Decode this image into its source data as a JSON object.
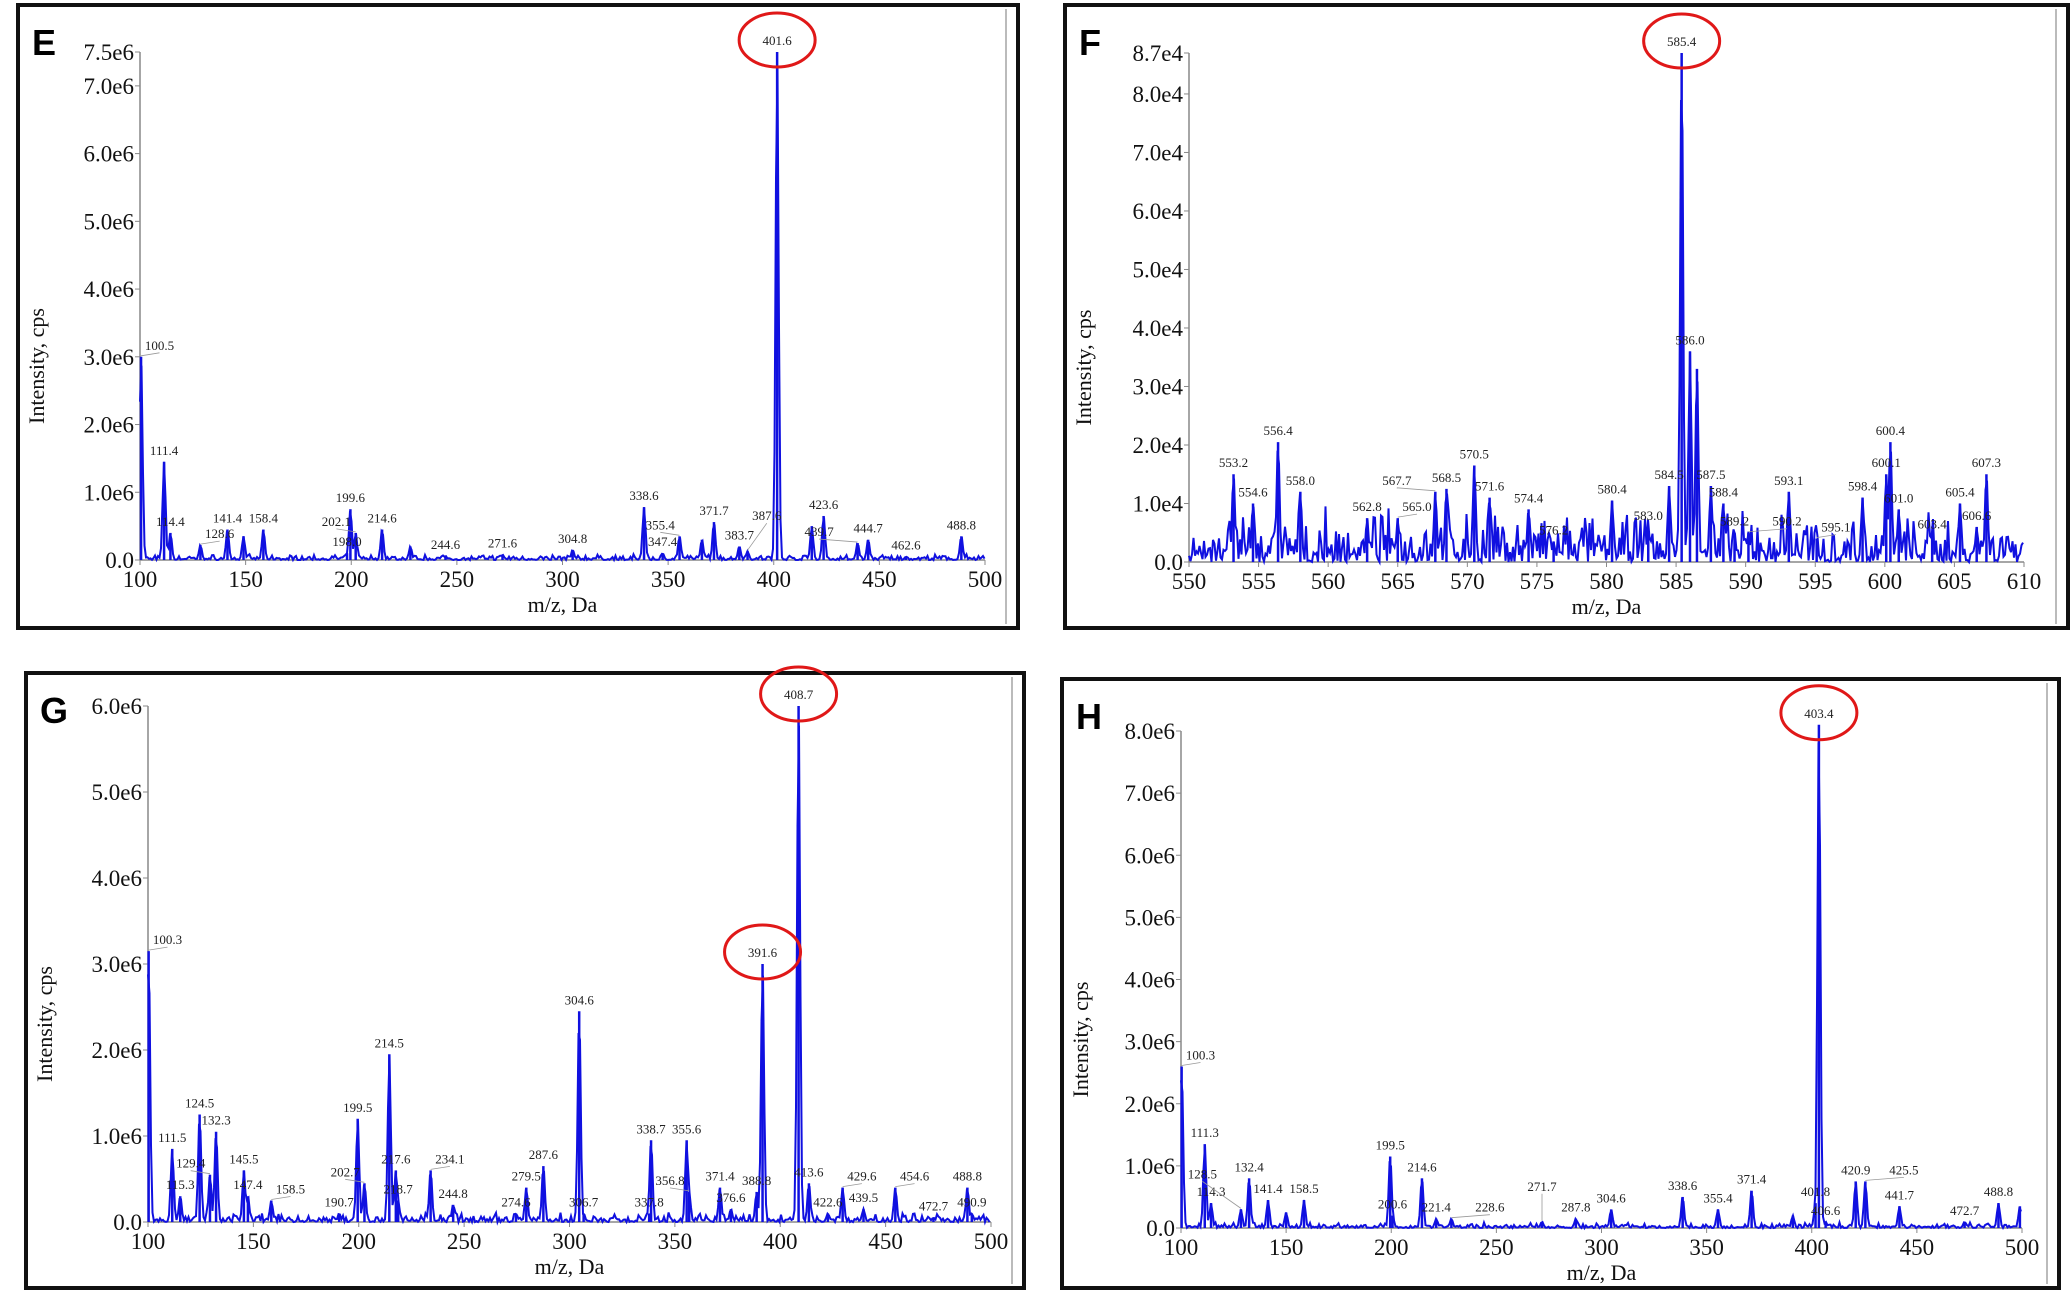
{
  "colors": {
    "spectrum": "#1010e0",
    "highlight": "#e01818",
    "axis": "#888888",
    "frame": "#111111"
  },
  "chart_data": [
    {
      "panel": "E",
      "type": "line",
      "xlabel": "m/z, Da",
      "ylabel": "Intensity, cps",
      "xlim": [
        100,
        500
      ],
      "ylim": [
        0,
        7500000
      ],
      "xticks": [
        "100",
        "150",
        "200",
        "250",
        "300",
        "350",
        "400",
        "450",
        "500"
      ],
      "yticks": [
        [
          "0.0",
          0
        ],
        [
          "1.0e6",
          1000000
        ],
        [
          "2.0e6",
          2000000
        ],
        [
          "3.0e6",
          3000000
        ],
        [
          "4.0e6",
          4000000
        ],
        [
          "5.0e6",
          5000000
        ],
        [
          "6.0e6",
          6000000
        ],
        [
          "7.0e6",
          7000000
        ],
        [
          "7.5e6",
          7500000
        ]
      ],
      "highlighted": [
        "401.6"
      ],
      "peaks": [
        {
          "mz": 100.5,
          "i": 3000000,
          "label": "100.5"
        },
        {
          "mz": 111.4,
          "i": 1450000,
          "label": "111.4"
        },
        {
          "mz": 114.4,
          "i": 400000,
          "label": "114.4"
        },
        {
          "mz": 128.6,
          "i": 220000,
          "label": "128.6"
        },
        {
          "mz": 141.4,
          "i": 450000,
          "label": "141.4"
        },
        {
          "mz": 149,
          "i": 350000,
          "label": ""
        },
        {
          "mz": 158.4,
          "i": 450000,
          "label": "158.4"
        },
        {
          "mz": 198.0,
          "i": 100000,
          "label": "198.0"
        },
        {
          "mz": 199.6,
          "i": 750000,
          "label": "199.6"
        },
        {
          "mz": 202.1,
          "i": 400000,
          "label": "202.1"
        },
        {
          "mz": 214.6,
          "i": 450000,
          "label": "214.6"
        },
        {
          "mz": 228,
          "i": 200000,
          "label": ""
        },
        {
          "mz": 244.6,
          "i": 60000,
          "label": "244.6"
        },
        {
          "mz": 271.6,
          "i": 80000,
          "label": "271.6"
        },
        {
          "mz": 304.8,
          "i": 150000,
          "label": "304.8"
        },
        {
          "mz": 338.6,
          "i": 780000,
          "label": "338.6"
        },
        {
          "mz": 347.4,
          "i": 100000,
          "label": "347.4"
        },
        {
          "mz": 355.4,
          "i": 350000,
          "label": "355.4"
        },
        {
          "mz": 366,
          "i": 300000,
          "label": ""
        },
        {
          "mz": 371.7,
          "i": 560000,
          "label": "371.7"
        },
        {
          "mz": 383.7,
          "i": 200000,
          "label": "383.7"
        },
        {
          "mz": 387.6,
          "i": 130000,
          "label": "387.6"
        },
        {
          "mz": 401.6,
          "i": 7500000,
          "label": "401.6"
        },
        {
          "mz": 418,
          "i": 500000,
          "label": ""
        },
        {
          "mz": 423.6,
          "i": 650000,
          "label": "423.6"
        },
        {
          "mz": 439.7,
          "i": 250000,
          "label": "439.7"
        },
        {
          "mz": 444.7,
          "i": 300000,
          "label": "444.7"
        },
        {
          "mz": 462.6,
          "i": 50000,
          "label": "462.6"
        },
        {
          "mz": 488.8,
          "i": 350000,
          "label": "488.8"
        }
      ]
    },
    {
      "panel": "F",
      "type": "line",
      "xlabel": "m/z, Da",
      "ylabel": "Intensity, cps",
      "xlim": [
        550,
        610
      ],
      "ylim": [
        0,
        87000
      ],
      "xticks": [
        "550",
        "555",
        "560",
        "565",
        "570",
        "575",
        "580",
        "585",
        "590",
        "595",
        "600",
        "605",
        "610"
      ],
      "yticks": [
        [
          "0.0",
          0
        ],
        [
          "1.0e4",
          10000
        ],
        [
          "2.0e4",
          20000
        ],
        [
          "3.0e4",
          30000
        ],
        [
          "4.0e4",
          40000
        ],
        [
          "5.0e4",
          50000
        ],
        [
          "6.0e4",
          60000
        ],
        [
          "7.0e4",
          70000
        ],
        [
          "8.0e4",
          80000
        ],
        [
          "8.7e4",
          87000
        ]
      ],
      "highlighted": [
        "585.4"
      ],
      "peaks": [
        {
          "mz": 553.2,
          "i": 15000,
          "label": "553.2"
        },
        {
          "mz": 554.6,
          "i": 10000,
          "label": "554.6"
        },
        {
          "mz": 556.4,
          "i": 20500,
          "label": "556.4"
        },
        {
          "mz": 558.0,
          "i": 12000,
          "label": "558.0"
        },
        {
          "mz": 562.8,
          "i": 7500,
          "label": "562.8"
        },
        {
          "mz": 565.0,
          "i": 7500,
          "label": "565.0"
        },
        {
          "mz": 567.7,
          "i": 12000,
          "label": "567.7"
        },
        {
          "mz": 568.5,
          "i": 12500,
          "label": "568.5"
        },
        {
          "mz": 570.5,
          "i": 16500,
          "label": "570.5"
        },
        {
          "mz": 571.6,
          "i": 11000,
          "label": "571.6"
        },
        {
          "mz": 574.4,
          "i": 9000,
          "label": "574.4"
        },
        {
          "mz": 576.2,
          "i": 3500,
          "label": "576.2"
        },
        {
          "mz": 580.4,
          "i": 10500,
          "label": "580.4"
        },
        {
          "mz": 583.0,
          "i": 6000,
          "label": "583.0"
        },
        {
          "mz": 584.5,
          "i": 13000,
          "label": "584.5"
        },
        {
          "mz": 585.4,
          "i": 87000,
          "label": "585.4"
        },
        {
          "mz": 586.0,
          "i": 36000,
          "label": "586.0"
        },
        {
          "mz": 586.5,
          "i": 33000,
          "label": ""
        },
        {
          "mz": 587.5,
          "i": 13000,
          "label": "587.5"
        },
        {
          "mz": 588.4,
          "i": 10000,
          "label": "588.4"
        },
        {
          "mz": 589.2,
          "i": 5000,
          "label": "589.2"
        },
        {
          "mz": 590.2,
          "i": 5000,
          "label": "590.2"
        },
        {
          "mz": 593.1,
          "i": 12000,
          "label": "593.1"
        },
        {
          "mz": 595.1,
          "i": 4000,
          "label": "595.1"
        },
        {
          "mz": 598.4,
          "i": 11000,
          "label": "598.4"
        },
        {
          "mz": 600.1,
          "i": 15000,
          "label": "600.1"
        },
        {
          "mz": 600.4,
          "i": 20500,
          "label": "600.4"
        },
        {
          "mz": 601.0,
          "i": 9000,
          "label": "601.0"
        },
        {
          "mz": 603.4,
          "i": 4500,
          "label": "603.4"
        },
        {
          "mz": 605.4,
          "i": 10000,
          "label": "605.4"
        },
        {
          "mz": 606.6,
          "i": 6000,
          "label": "606.6"
        },
        {
          "mz": 607.3,
          "i": 15000,
          "label": "607.3"
        }
      ]
    },
    {
      "panel": "G",
      "type": "line",
      "xlabel": "m/z, Da",
      "ylabel": "Intensity, cps",
      "xlim": [
        100,
        500
      ],
      "ylim": [
        0,
        6000000
      ],
      "xticks": [
        "100",
        "150",
        "200",
        "250",
        "300",
        "350",
        "400",
        "450",
        "500"
      ],
      "yticks": [
        [
          "0.0",
          0
        ],
        [
          "1.0e6",
          1000000
        ],
        [
          "2.0e6",
          2000000
        ],
        [
          "3.0e6",
          3000000
        ],
        [
          "4.0e6",
          4000000
        ],
        [
          "5.0e6",
          5000000
        ],
        [
          "6.0e6",
          6000000
        ]
      ],
      "highlighted": [
        "408.7",
        "391.6"
      ],
      "peaks": [
        {
          "mz": 100.3,
          "i": 3150000,
          "label": "100.3"
        },
        {
          "mz": 111.5,
          "i": 850000,
          "label": "111.5"
        },
        {
          "mz": 115.3,
          "i": 300000,
          "label": "115.3"
        },
        {
          "mz": 124.5,
          "i": 1250000,
          "label": "124.5"
        },
        {
          "mz": 129.4,
          "i": 550000,
          "label": "129.4"
        },
        {
          "mz": 132.3,
          "i": 1050000,
          "label": "132.3"
        },
        {
          "mz": 145.5,
          "i": 600000,
          "label": "145.5"
        },
        {
          "mz": 147.4,
          "i": 300000,
          "label": "147.4"
        },
        {
          "mz": 158.5,
          "i": 250000,
          "label": "158.5"
        },
        {
          "mz": 190.7,
          "i": 100000,
          "label": "190.7"
        },
        {
          "mz": 199.5,
          "i": 1200000,
          "label": "199.5"
        },
        {
          "mz": 202.7,
          "i": 450000,
          "label": "202.7"
        },
        {
          "mz": 214.5,
          "i": 1950000,
          "label": "214.5"
        },
        {
          "mz": 217.6,
          "i": 600000,
          "label": "217.6"
        },
        {
          "mz": 218.7,
          "i": 250000,
          "label": "218.7"
        },
        {
          "mz": 234.1,
          "i": 600000,
          "label": "234.1"
        },
        {
          "mz": 244.8,
          "i": 200000,
          "label": "244.8"
        },
        {
          "mz": 274.6,
          "i": 100000,
          "label": "274.6"
        },
        {
          "mz": 279.5,
          "i": 400000,
          "label": "279.5"
        },
        {
          "mz": 287.6,
          "i": 650000,
          "label": "287.6"
        },
        {
          "mz": 304.6,
          "i": 2450000,
          "label": "304.6"
        },
        {
          "mz": 306.7,
          "i": 100000,
          "label": "306.7"
        },
        {
          "mz": 337.8,
          "i": 100000,
          "label": "337.8"
        },
        {
          "mz": 338.7,
          "i": 950000,
          "label": "338.7"
        },
        {
          "mz": 355.6,
          "i": 950000,
          "label": "355.6"
        },
        {
          "mz": 356.8,
          "i": 350000,
          "label": "356.8"
        },
        {
          "mz": 371.4,
          "i": 400000,
          "label": "371.4"
        },
        {
          "mz": 376.6,
          "i": 150000,
          "label": "376.6"
        },
        {
          "mz": 388.8,
          "i": 350000,
          "label": "388.8"
        },
        {
          "mz": 391.6,
          "i": 3000000,
          "label": "391.6"
        },
        {
          "mz": 408.7,
          "i": 6000000,
          "label": "408.7"
        },
        {
          "mz": 413.6,
          "i": 450000,
          "label": "413.6"
        },
        {
          "mz": 422.6,
          "i": 100000,
          "label": "422.6"
        },
        {
          "mz": 429.6,
          "i": 400000,
          "label": "429.6"
        },
        {
          "mz": 439.5,
          "i": 150000,
          "label": "439.5"
        },
        {
          "mz": 454.6,
          "i": 400000,
          "label": "454.6"
        },
        {
          "mz": 472.7,
          "i": 50000,
          "label": "472.7"
        },
        {
          "mz": 488.8,
          "i": 400000,
          "label": "488.8"
        },
        {
          "mz": 490.9,
          "i": 100000,
          "label": "490.9"
        }
      ]
    },
    {
      "panel": "H",
      "type": "line",
      "xlabel": "m/z, Da",
      "ylabel": "Intensity, cps",
      "xlim": [
        100,
        500
      ],
      "ylim": [
        0,
        8000000
      ],
      "xticks": [
        "100",
        "150",
        "200",
        "250",
        "300",
        "350",
        "400",
        "450",
        "500"
      ],
      "yticks": [
        [
          "0.0",
          0
        ],
        [
          "1.0e6",
          1000000
        ],
        [
          "2.0e6",
          2000000
        ],
        [
          "3.0e6",
          3000000
        ],
        [
          "4.0e6",
          4000000
        ],
        [
          "5.0e6",
          5000000
        ],
        [
          "6.0e6",
          6000000
        ],
        [
          "7.0e6",
          7000000
        ],
        [
          "8.0e6",
          8000000
        ]
      ],
      "highlighted": [
        "403.4"
      ],
      "peaks": [
        {
          "mz": 100.3,
          "i": 2600000,
          "label": "100.3"
        },
        {
          "mz": 111.3,
          "i": 1350000,
          "label": "111.3"
        },
        {
          "mz": 114.3,
          "i": 400000,
          "label": "114.3"
        },
        {
          "mz": 128.5,
          "i": 300000,
          "label": "128.5"
        },
        {
          "mz": 132.4,
          "i": 800000,
          "label": "132.4"
        },
        {
          "mz": 141.4,
          "i": 450000,
          "label": "141.4"
        },
        {
          "mz": 150,
          "i": 250000,
          "label": ""
        },
        {
          "mz": 158.5,
          "i": 450000,
          "label": "158.5"
        },
        {
          "mz": 199.5,
          "i": 1150000,
          "label": "199.5"
        },
        {
          "mz": 200.6,
          "i": 200000,
          "label": "200.6"
        },
        {
          "mz": 214.6,
          "i": 800000,
          "label": "214.6"
        },
        {
          "mz": 221.4,
          "i": 150000,
          "label": "221.4"
        },
        {
          "mz": 228.6,
          "i": 150000,
          "label": "228.6"
        },
        {
          "mz": 271.7,
          "i": 100000,
          "label": "271.7"
        },
        {
          "mz": 287.8,
          "i": 150000,
          "label": "287.8"
        },
        {
          "mz": 304.6,
          "i": 300000,
          "label": "304.6"
        },
        {
          "mz": 338.6,
          "i": 500000,
          "label": "338.6"
        },
        {
          "mz": 355.4,
          "i": 300000,
          "label": "355.4"
        },
        {
          "mz": 371.4,
          "i": 600000,
          "label": "371.4"
        },
        {
          "mz": 391,
          "i": 200000,
          "label": ""
        },
        {
          "mz": 401.8,
          "i": 400000,
          "label": "401.8"
        },
        {
          "mz": 403.4,
          "i": 8100000,
          "label": "403.4"
        },
        {
          "mz": 406.6,
          "i": 100000,
          "label": "406.6"
        },
        {
          "mz": 420.9,
          "i": 750000,
          "label": "420.9"
        },
        {
          "mz": 425.5,
          "i": 750000,
          "label": "425.5"
        },
        {
          "mz": 441.7,
          "i": 350000,
          "label": "441.7"
        },
        {
          "mz": 472.7,
          "i": 100000,
          "label": "472.7"
        },
        {
          "mz": 488.8,
          "i": 400000,
          "label": "488.8"
        },
        {
          "mz": 499,
          "i": 350000,
          "label": ""
        }
      ]
    }
  ]
}
